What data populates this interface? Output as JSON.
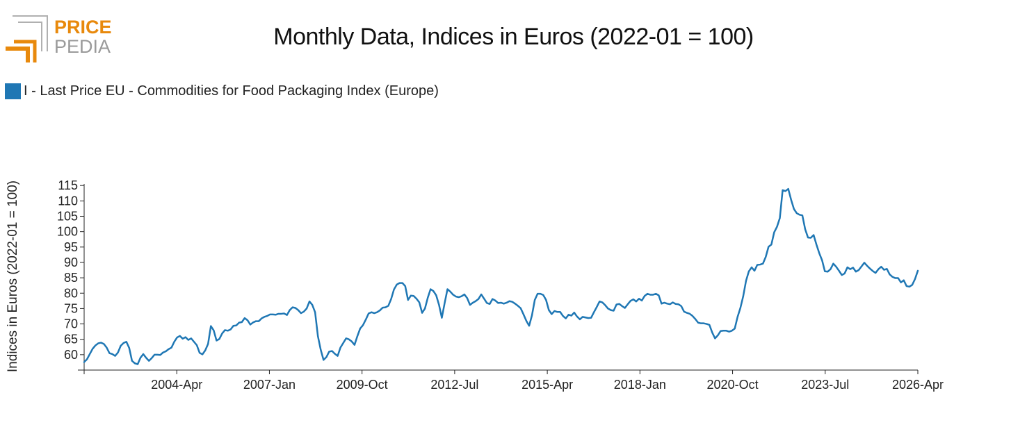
{
  "logo": {
    "line1": "PRICE",
    "line2": "PEDIA"
  },
  "colors": {
    "series": "#1f77b4",
    "logo_orange": "#e8890c",
    "logo_gray": "#9a9a9a",
    "axis": "#222222"
  },
  "chart_data": {
    "type": "line",
    "title": "Monthly Data, Indices in Euros (2022-01 = 100)",
    "ylabel": "Indices in Euros (2022-01 = 100)",
    "xlabel": "",
    "ylim": [
      55,
      115.5
    ],
    "yticks": [
      60,
      65,
      70,
      75,
      80,
      85,
      90,
      95,
      100,
      105,
      110,
      115
    ],
    "xticks": [
      "2004-Apr",
      "2007-Jan",
      "2009-Oct",
      "2012-Jul",
      "2015-Apr",
      "2018-Jan",
      "2020-Oct",
      "2023-Jul",
      "2026-Apr"
    ],
    "x_start": "2001-Jul",
    "x_end": "2026-Apr",
    "grid": false,
    "legend_position": "top-left",
    "series": [
      {
        "name": "I - Last Price EU - Commodities for Food Packaging Index (Europe)",
        "values": [
          57.6,
          58.5,
          60.2,
          61.9,
          63.0,
          63.7,
          63.9,
          63.5,
          62.3,
          60.5,
          60.2,
          59.6,
          60.7,
          62.9,
          63.8,
          64.2,
          62.2,
          58.0,
          57.2,
          56.9,
          59.0,
          60.2,
          59.0,
          58.0,
          58.9,
          60.0,
          60.0,
          59.9,
          60.7,
          61.1,
          61.8,
          62.3,
          64.2,
          65.6,
          66.1,
          65.2,
          65.7,
          64.8,
          65.3,
          64.2,
          63.1,
          60.6,
          60.1,
          61.4,
          63.5,
          69.3,
          67.9,
          64.6,
          65.1,
          66.9,
          68.0,
          67.8,
          68.2,
          69.4,
          69.5,
          70.4,
          70.6,
          71.9,
          71.2,
          69.8,
          70.5,
          70.9,
          70.9,
          71.8,
          72.3,
          72.6,
          73.1,
          73.1,
          73.0,
          73.3,
          73.3,
          73.4,
          72.9,
          74.5,
          75.4,
          75.2,
          74.5,
          73.5,
          74.0,
          75.0,
          77.3,
          76.2,
          73.8,
          66.0,
          61.6,
          58.3,
          59.2,
          61.0,
          61.2,
          60.3,
          59.6,
          62.3,
          63.8,
          65.3,
          65.0,
          64.3,
          63.2,
          66.0,
          68.5,
          69.6,
          71.4,
          73.4,
          73.8,
          73.5,
          73.8,
          74.4,
          75.3,
          75.4,
          75.9,
          78.1,
          81.2,
          82.8,
          83.3,
          83.3,
          82.3,
          77.8,
          79.2,
          79.1,
          78.2,
          77.0,
          73.6,
          75.0,
          78.5,
          81.3,
          80.7,
          79.3,
          76.2,
          72.0,
          76.8,
          81.3,
          80.5,
          79.5,
          78.9,
          78.7,
          79.0,
          79.6,
          78.4,
          76.2,
          76.9,
          77.4,
          78.1,
          79.6,
          78.2,
          76.8,
          76.5,
          78.1,
          77.6,
          76.8,
          76.9,
          76.6,
          76.9,
          77.4,
          77.2,
          76.6,
          75.9,
          75.1,
          73.1,
          71.0,
          69.4,
          72.8,
          77.8,
          79.8,
          79.8,
          79.4,
          77.8,
          74.5,
          73.2,
          74.2,
          73.9,
          73.9,
          72.6,
          71.8,
          73.0,
          72.7,
          73.7,
          72.4,
          71.5,
          72.3,
          72.1,
          71.9,
          72.0,
          73.8,
          75.5,
          77.3,
          77.0,
          76.1,
          75.0,
          74.5,
          74.3,
          76.3,
          76.5,
          75.8,
          75.2,
          76.4,
          77.5,
          78.0,
          77.3,
          78.2,
          77.6,
          79.1,
          79.8,
          79.5,
          79.5,
          79.8,
          79.3,
          76.6,
          76.9,
          76.6,
          76.4,
          77.0,
          76.5,
          76.4,
          75.8,
          74.0,
          73.6,
          73.3,
          72.6,
          71.6,
          70.4,
          70.2,
          70.2,
          70.0,
          69.7,
          67.2,
          65.3,
          66.3,
          67.7,
          67.8,
          67.8,
          67.5,
          67.8,
          68.5,
          72.3,
          75.2,
          79.0,
          84.0,
          87.1,
          88.4,
          87.3,
          89.2,
          89.3,
          89.6,
          91.8,
          95.1,
          95.8,
          99.8,
          101.6,
          104.4,
          113.5,
          113.2,
          113.9,
          110.4,
          107.4,
          106.0,
          105.5,
          105.3,
          100.8,
          98.1,
          98.0,
          98.9,
          95.8,
          93.0,
          90.7,
          87.1,
          87.0,
          87.8,
          89.6,
          88.6,
          87.3,
          85.9,
          86.4,
          88.4,
          87.8,
          88.3,
          87.0,
          87.5,
          88.7,
          89.9,
          88.9,
          88.0,
          87.2,
          86.6,
          87.8,
          88.6,
          87.6,
          87.9,
          86.1,
          85.3,
          84.9,
          84.9,
          83.5,
          84.2,
          82.3,
          82.1,
          82.7,
          84.6,
          87.3
        ]
      }
    ]
  }
}
